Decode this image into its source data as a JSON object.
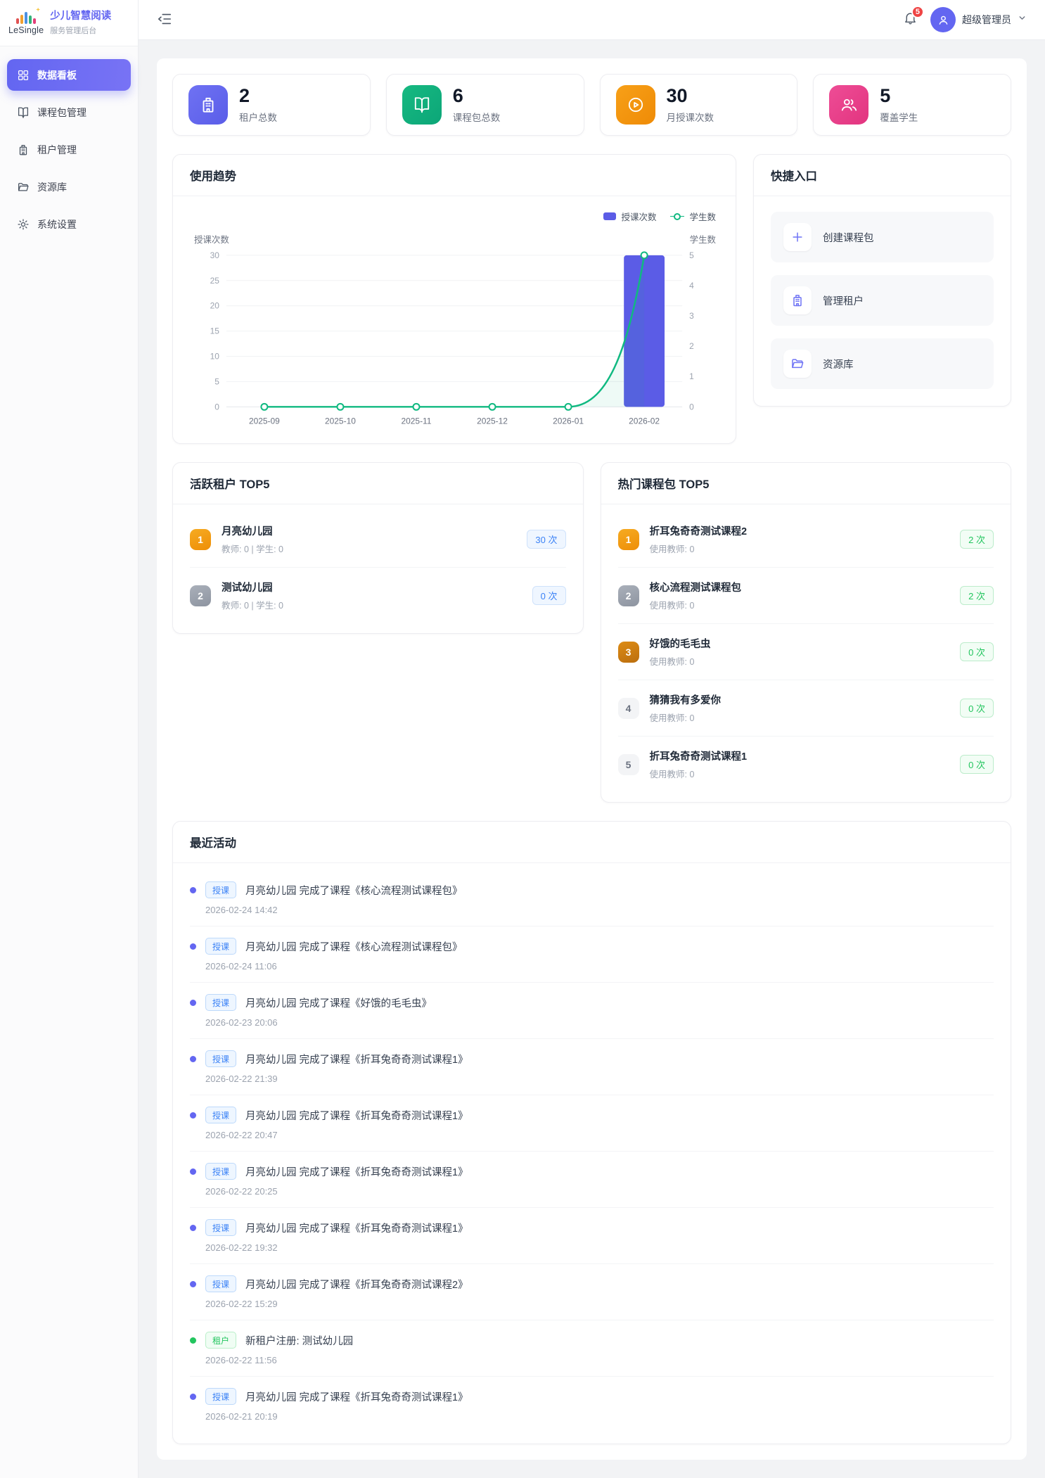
{
  "colors": {
    "accent": "#6366f1",
    "bar": "#5b5ce6",
    "line": "#10b981",
    "blue": "#3b82f6",
    "tag-green": "#22c55e",
    "red": "#ef4444",
    "orange": "#f59e0b",
    "pink": "#ec4899"
  },
  "brand": {
    "logo_text": "LeSingle",
    "title": "少儿智慧阅读",
    "subtitle": "服务管理后台"
  },
  "sidebar": {
    "items": [
      {
        "label": "数据看板"
      },
      {
        "label": "课程包管理"
      },
      {
        "label": "租户管理"
      },
      {
        "label": "资源库"
      },
      {
        "label": "系统设置"
      }
    ]
  },
  "header": {
    "notification_count": "5",
    "username": "超级管理员"
  },
  "stats": {
    "cards": [
      {
        "value": "2",
        "label": "租户总数"
      },
      {
        "value": "6",
        "label": "课程包总数"
      },
      {
        "value": "30",
        "label": "月授课次数"
      },
      {
        "value": "5",
        "label": "覆盖学生"
      }
    ]
  },
  "usage_trend": {
    "title": "使用趋势",
    "legend": [
      {
        "label": "授课次数"
      },
      {
        "label": "学生数"
      }
    ]
  },
  "chart_data": {
    "type": "bar+line combo, dual y-axis",
    "title": "使用趋势",
    "categories": [
      "2025-09",
      "2025-10",
      "2025-11",
      "2025-12",
      "2026-01",
      "2026-02"
    ],
    "series": [
      {
        "name": "授课次数",
        "type": "bar",
        "axis": "left",
        "color": "#5b5ce6",
        "values": [
          0,
          0,
          0,
          0,
          0,
          30
        ]
      },
      {
        "name": "学生数",
        "type": "line",
        "axis": "right",
        "color": "#10b981",
        "values": [
          0,
          0,
          0,
          0,
          0,
          5
        ]
      }
    ],
    "left_axis": {
      "name": "授课次数",
      "min": 0,
      "max": 30,
      "step": 5
    },
    "right_axis": {
      "name": "学生数",
      "min": 0,
      "max": 5,
      "step": 1
    },
    "grid": true,
    "legend_position": "top-right"
  },
  "quick_entry": {
    "title": "快捷入口",
    "items": [
      {
        "label": "创建课程包"
      },
      {
        "label": "管理租户"
      },
      {
        "label": "资源库"
      }
    ]
  },
  "active_tenants": {
    "title": "活跃租户 TOP5",
    "items": [
      {
        "rank": "1",
        "name": "月亮幼儿园",
        "meta": "教师: 0 | 学生: 0",
        "count": "30 次"
      },
      {
        "rank": "2",
        "name": "测试幼儿园",
        "meta": "教师: 0 | 学生: 0",
        "count": "0 次"
      }
    ]
  },
  "hot_packages": {
    "title": "热门课程包 TOP5",
    "items": [
      {
        "rank": "1",
        "name": "折耳兔奇奇测试课程2",
        "meta": "使用教师: 0",
        "count": "2 次"
      },
      {
        "rank": "2",
        "name": "核心流程测试课程包",
        "meta": "使用教师: 0",
        "count": "2 次"
      },
      {
        "rank": "3",
        "name": "好饿的毛毛虫",
        "meta": "使用教师: 0",
        "count": "0 次"
      },
      {
        "rank": "4",
        "name": "猜猜我有多爱你",
        "meta": "使用教师: 0",
        "count": "0 次"
      },
      {
        "rank": "5",
        "name": "折耳兔奇奇测试课程1",
        "meta": "使用教师: 0",
        "count": "0 次"
      }
    ]
  },
  "recent_activity": {
    "title": "最近活动",
    "items": [
      {
        "tag": "授课",
        "color": "blue",
        "text": "月亮幼儿园 完成了课程《核心流程测试课程包》",
        "time": "2026-02-24 14:42"
      },
      {
        "tag": "授课",
        "color": "blue",
        "text": "月亮幼儿园 完成了课程《核心流程测试课程包》",
        "time": "2026-02-24 11:06"
      },
      {
        "tag": "授课",
        "color": "blue",
        "text": "月亮幼儿园 完成了课程《好饿的毛毛虫》",
        "time": "2026-02-23 20:06"
      },
      {
        "tag": "授课",
        "color": "blue",
        "text": "月亮幼儿园 完成了课程《折耳兔奇奇测试课程1》",
        "time": "2026-02-22 21:39"
      },
      {
        "tag": "授课",
        "color": "blue",
        "text": "月亮幼儿园 完成了课程《折耳兔奇奇测试课程1》",
        "time": "2026-02-22 20:47"
      },
      {
        "tag": "授课",
        "color": "blue",
        "text": "月亮幼儿园 完成了课程《折耳兔奇奇测试课程1》",
        "time": "2026-02-22 20:25"
      },
      {
        "tag": "授课",
        "color": "blue",
        "text": "月亮幼儿园 完成了课程《折耳兔奇奇测试课程1》",
        "time": "2026-02-22 19:32"
      },
      {
        "tag": "授课",
        "color": "blue",
        "text": "月亮幼儿园 完成了课程《折耳兔奇奇测试课程2》",
        "time": "2026-02-22 15:29"
      },
      {
        "tag": "租户",
        "color": "green",
        "text": "新租户注册: 测试幼儿园",
        "time": "2026-02-22 11:56"
      },
      {
        "tag": "授课",
        "color": "blue",
        "text": "月亮幼儿园 完成了课程《折耳兔奇奇测试课程1》",
        "time": "2026-02-21 20:19"
      }
    ]
  }
}
